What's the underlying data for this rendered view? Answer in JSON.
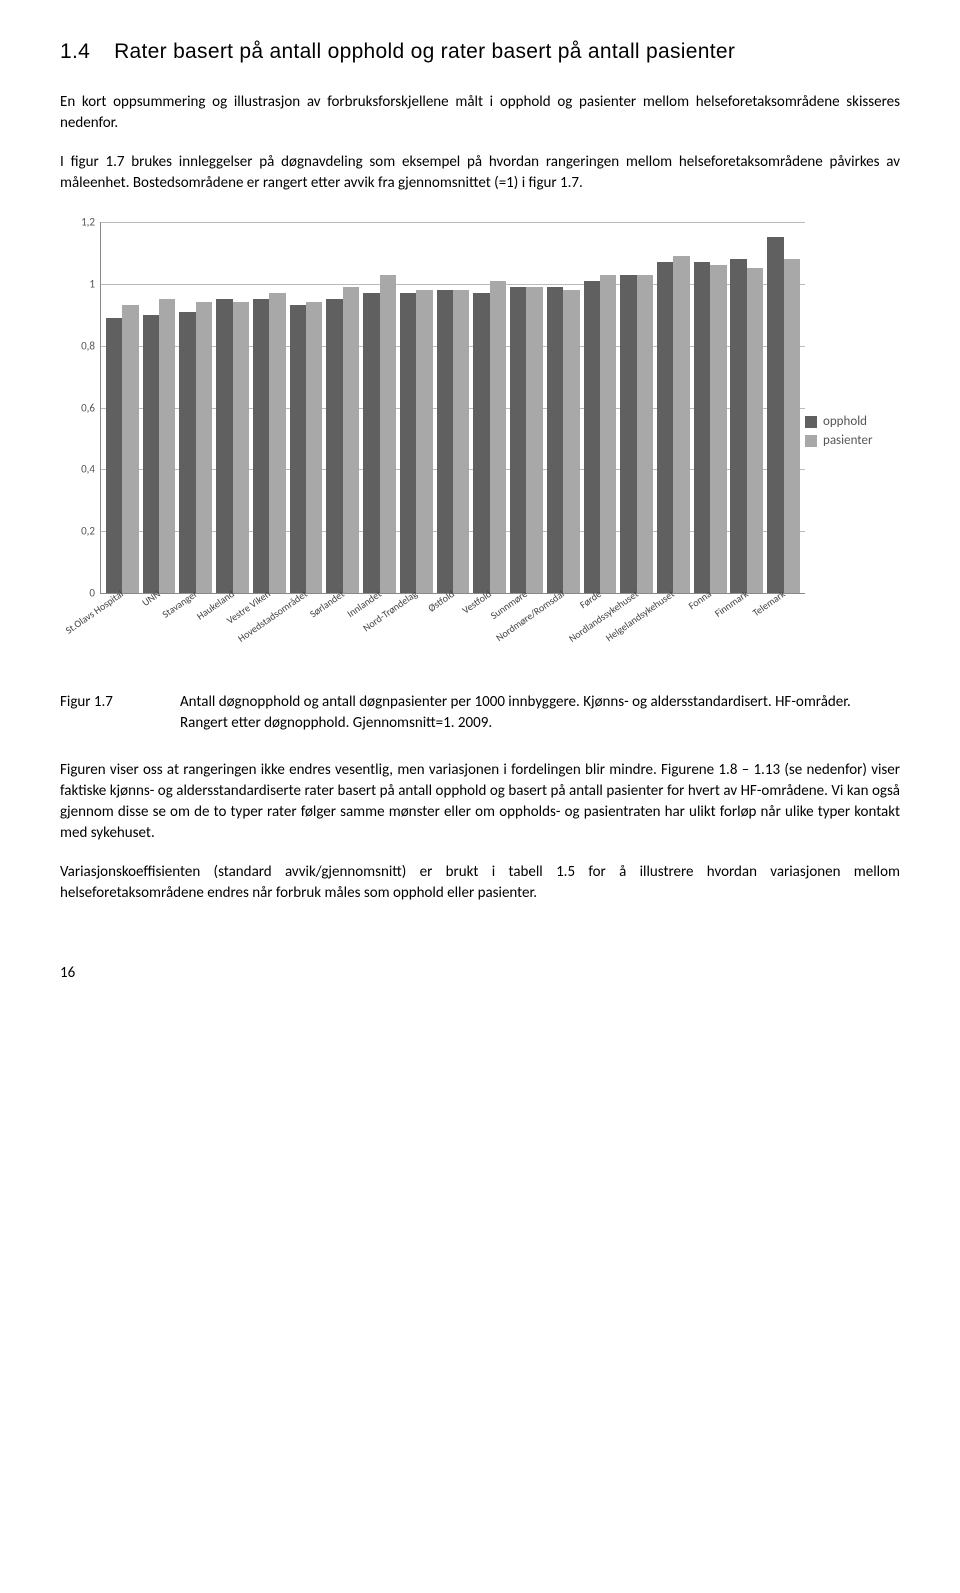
{
  "heading": {
    "number": "1.4",
    "title": "Rater basert på antall opphold og rater basert på antall pasienter"
  },
  "para1": "En kort oppsummering og illustrasjon av forbruksforskjellene målt i opphold og pasienter mellom helseforetaksområdene skisseres nedenfor.",
  "para2": "I figur 1.7 brukes innleggelser på døgnavdeling som eksempel på hvordan rangeringen mellom helseforetaksområdene påvirkes av måleenhet. Bostedsområdene er rangert etter avvik fra gjennomsnittet (=1) i figur 1.7.",
  "chart": {
    "type": "bar",
    "ymax": 1.2,
    "yticks": [
      "0",
      "0,2",
      "0,4",
      "0,6",
      "0,8",
      "1",
      "1,2"
    ],
    "series_labels": [
      "opphold",
      "pasienter"
    ],
    "series_colors": [
      "#606060",
      "#a8a8a8"
    ],
    "background_color": "#ffffff",
    "grid_color": "#bbbbbb",
    "categories": [
      "St.Olavs Hospital",
      "UNN",
      "Stavanger",
      "Haukeland",
      "Vestre Viken",
      "Hovedstadsområdet",
      "Sørlandet",
      "Innlandet",
      "Nord-Trøndelag",
      "Østfold",
      "Vestfold",
      "Sunnmøre",
      "Nordmøre/Romsdal",
      "Førde",
      "Nordlandssykehuset",
      "Helgelandsykehuset",
      "Fonna",
      "Finnmark",
      "Telemark"
    ],
    "values": [
      [
        0.89,
        0.93
      ],
      [
        0.9,
        0.95
      ],
      [
        0.91,
        0.94
      ],
      [
        0.95,
        0.94
      ],
      [
        0.95,
        0.97
      ],
      [
        0.93,
        0.94
      ],
      [
        0.95,
        0.99
      ],
      [
        0.97,
        1.03
      ],
      [
        0.97,
        0.98
      ],
      [
        0.98,
        0.98
      ],
      [
        0.97,
        1.01
      ],
      [
        0.99,
        0.99
      ],
      [
        0.99,
        0.98
      ],
      [
        1.01,
        1.03
      ],
      [
        1.03,
        1.03
      ],
      [
        1.07,
        1.09
      ],
      [
        1.07,
        1.06
      ],
      [
        1.08,
        1.05
      ],
      [
        1.15,
        1.08
      ]
    ],
    "caption_label": "Figur 1.7",
    "caption_text": "Antall døgnopphold og antall døgnpasienter per 1000 innbyggere. Kjønns- og aldersstandardisert. HF-områder. Rangert etter døgnopphold. Gjennomsnitt=1. 2009."
  },
  "para3": "Figuren viser oss at rangeringen ikke endres vesentlig, men variasjonen i fordelingen blir mindre. Figurene 1.8 – 1.13 (se nedenfor) viser faktiske kjønns- og aldersstandardiserte rater basert på antall opphold og basert på antall pasienter for hvert av HF-områdene. Vi kan også gjennom disse se om de to typer rater følger samme mønster eller om oppholds- og pasientraten har ulikt forløp når ulike typer kontakt med sykehuset.",
  "para4": "Variasjonskoeffisienten (standard avvik/gjennomsnitt) er brukt i tabell 1.5 for å illustrere hvordan variasjonen mellom helseforetaksområdene endres når forbruk måles som opphold eller pasienter.",
  "page_number": "16"
}
